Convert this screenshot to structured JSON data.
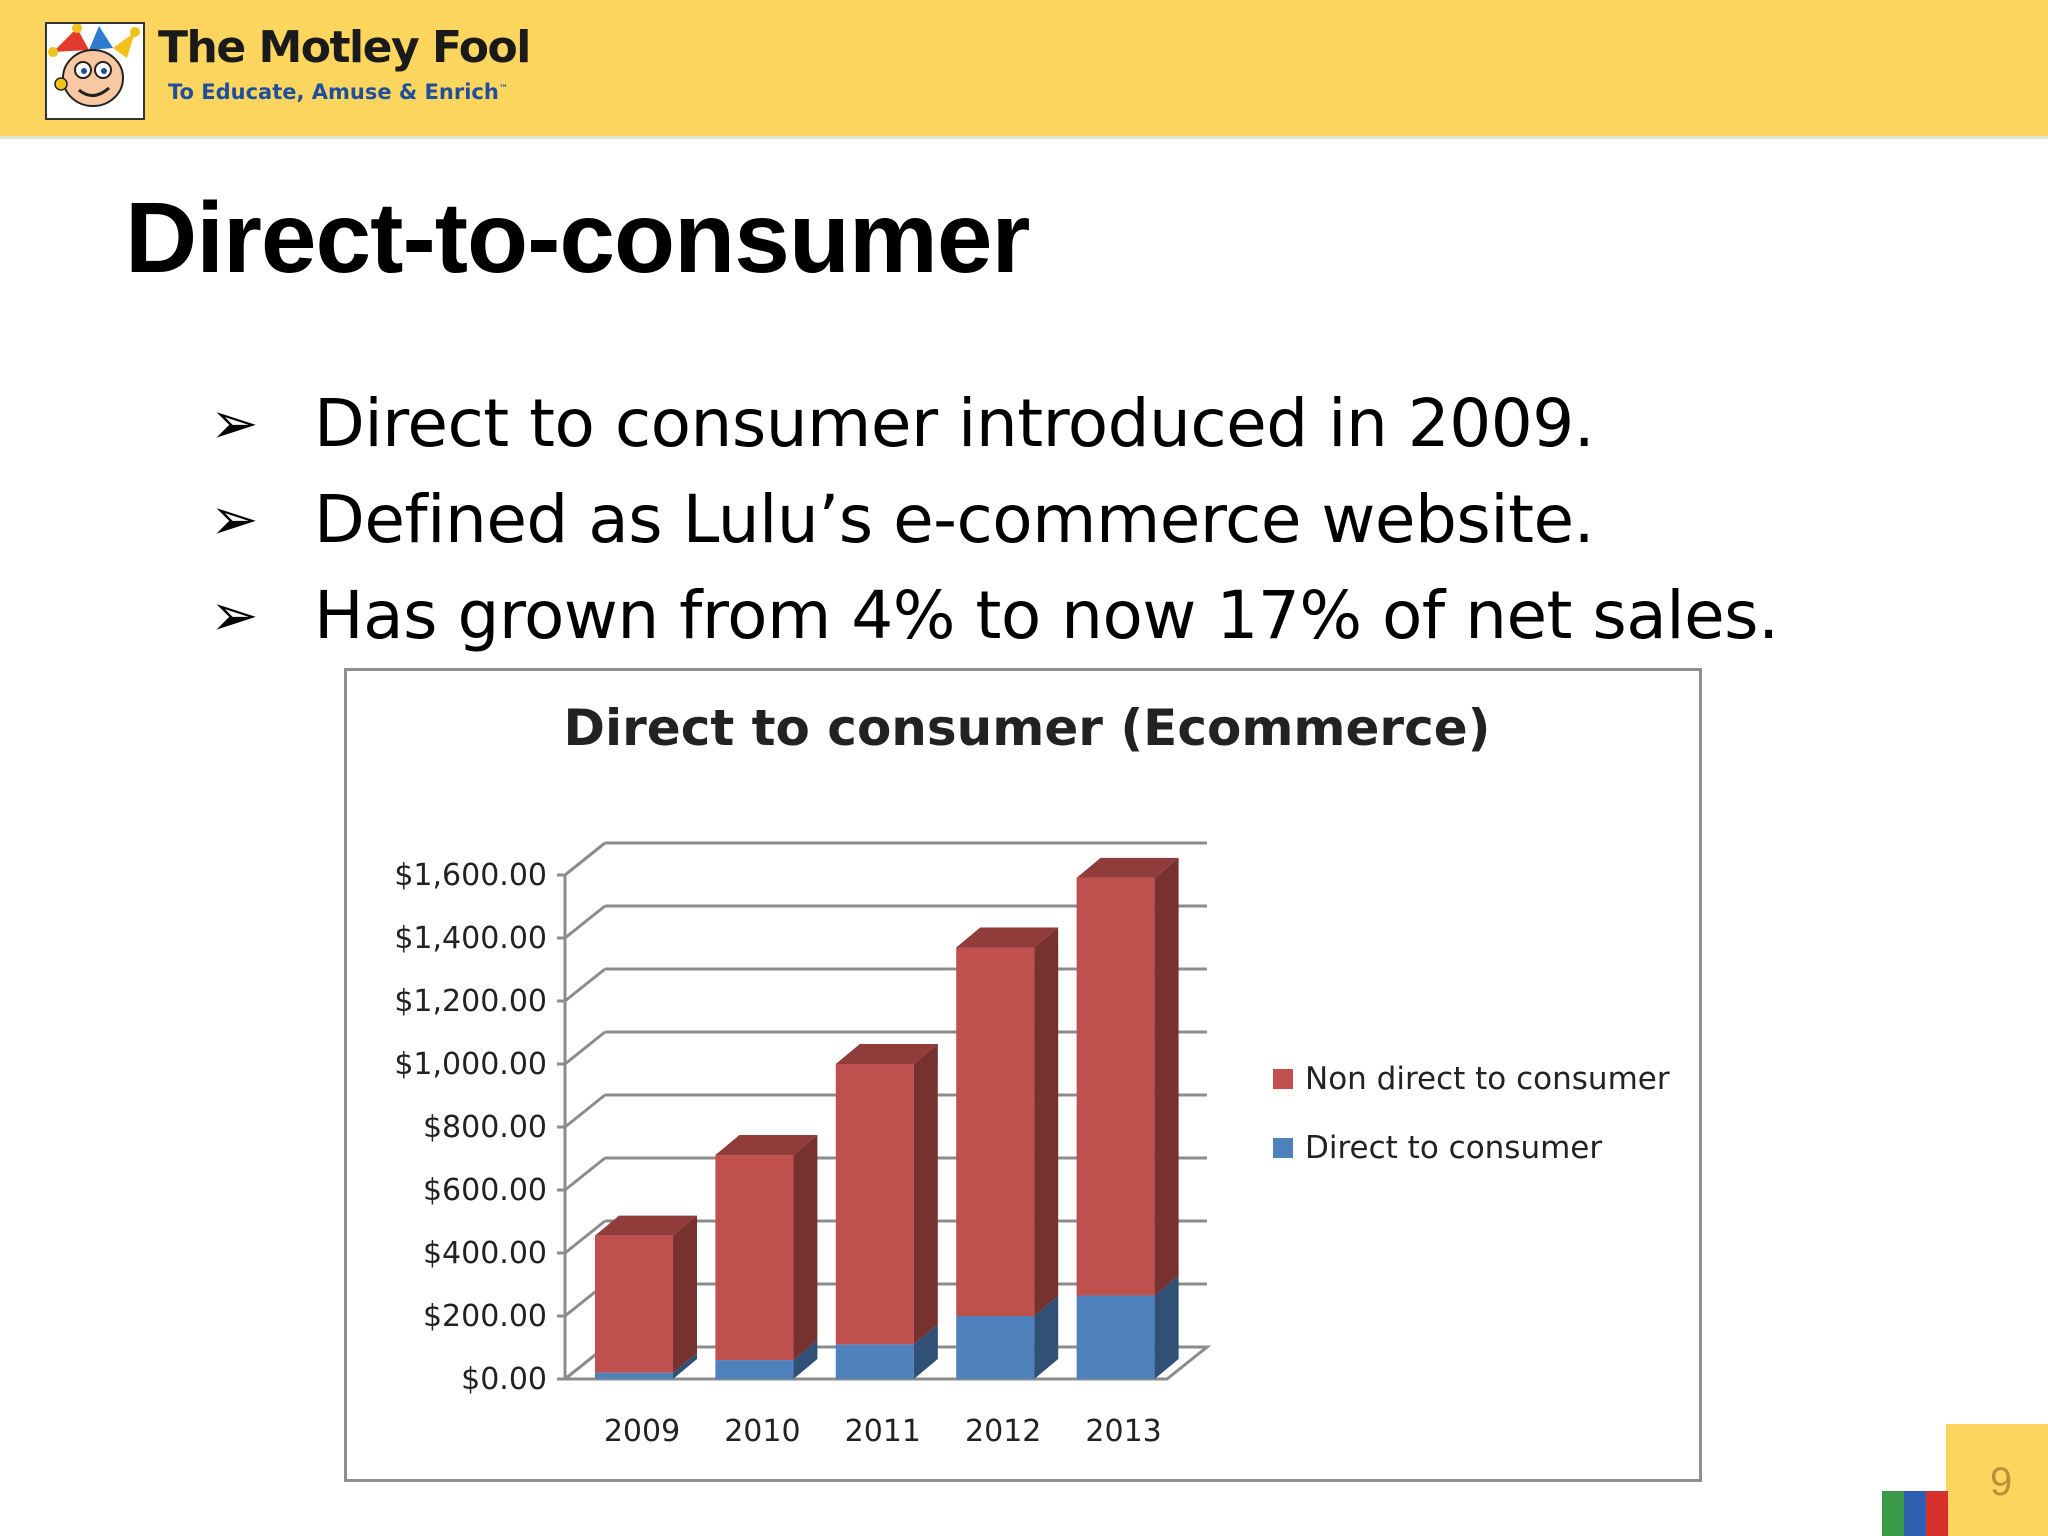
{
  "header": {
    "brand": "The Motley Fool",
    "tagline": "To Educate, Amuse & Enrich",
    "tagline_tm": "™",
    "background": "#fcd55f",
    "logo_icon": "jester-logo-icon"
  },
  "slide": {
    "title": "Direct-to-consumer",
    "bullet_marker": "➢",
    "bullets": [
      "Direct to consumer introduced in 2009.",
      "Defined as Lulu’s e-commerce website.",
      "Has grown from 4% to now 17% of net sales."
    ],
    "page_number": "9"
  },
  "chart_data": {
    "type": "bar",
    "stacked": true,
    "three_d": true,
    "title": "Direct to consumer (Ecommerce)",
    "categories": [
      "2009",
      "2010",
      "2011",
      "2012",
      "2013"
    ],
    "series": [
      {
        "name": "Direct to consumer",
        "values": [
          20,
          60,
          110,
          200,
          265
        ],
        "color": "#4f81bd"
      },
      {
        "name": "Non direct to consumer",
        "values": [
          435,
          651,
          890,
          1170,
          1326
        ],
        "color": "#c0504d"
      }
    ],
    "ylim": [
      0,
      1600
    ],
    "y_ticks": [
      0,
      200,
      400,
      600,
      800,
      1000,
      1200,
      1400,
      1600
    ],
    "y_tick_labels": [
      "$0.00",
      "$200.00",
      "$400.00",
      "$600.00",
      "$800.00",
      "$1,000.00",
      "$1,200.00",
      "$1,400.00",
      "$1,600.00"
    ],
    "grid": true,
    "legend": "right",
    "xlabel": "",
    "ylabel": ""
  }
}
